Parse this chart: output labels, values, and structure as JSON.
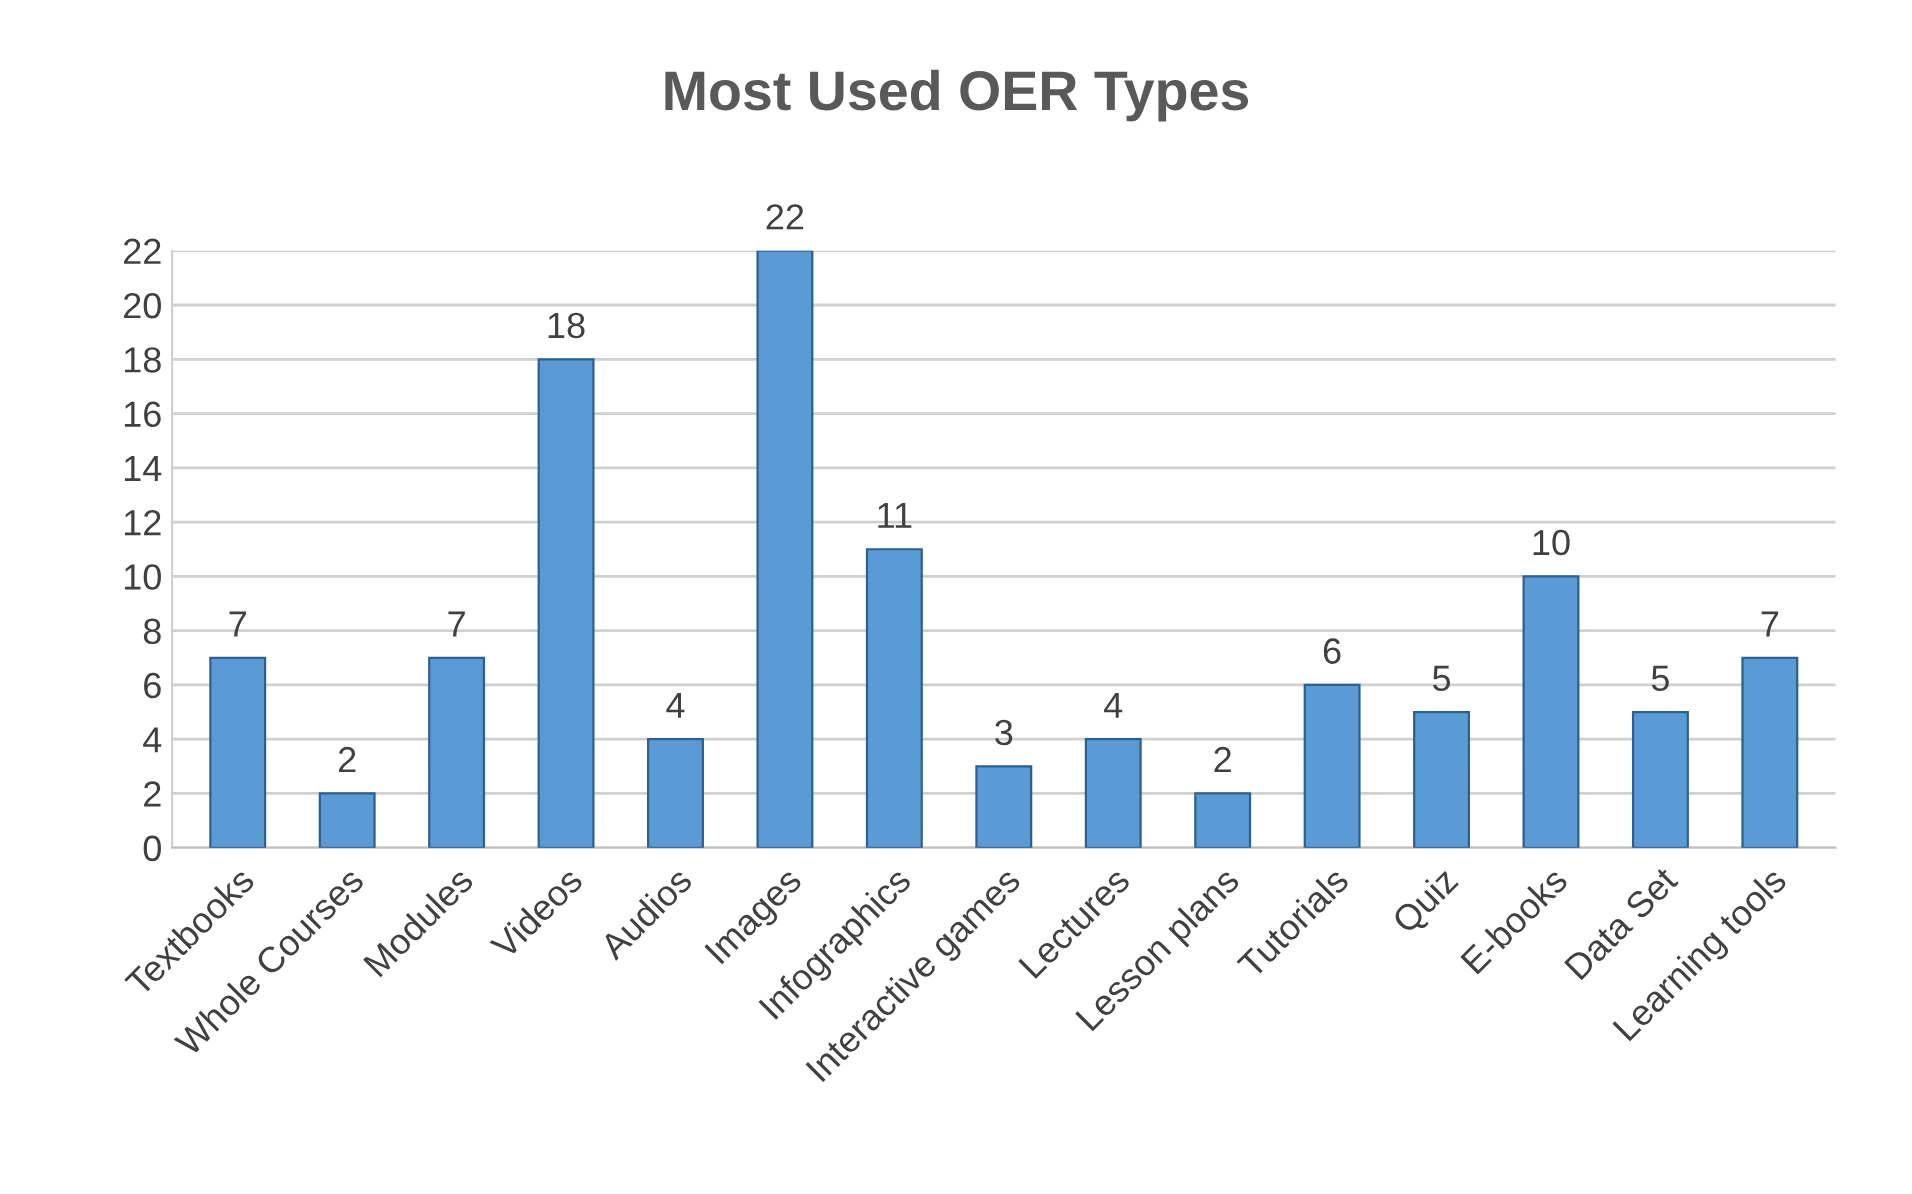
{
  "chart_data": {
    "type": "bar",
    "title": "Most Used OER Types",
    "categories": [
      "Textbooks",
      "Whole Courses",
      "Modules",
      "Videos",
      "Audios",
      "Images",
      "Infographics",
      "Interactive games",
      "Lectures",
      "Lesson plans",
      "Tutorials",
      "Quiz",
      "E-books",
      "Data Set",
      "Learning tools"
    ],
    "values": [
      7,
      2,
      7,
      18,
      4,
      22,
      11,
      3,
      4,
      2,
      6,
      5,
      10,
      5,
      7
    ],
    "color": "#5b9bd5",
    "ylim": [
      0,
      22
    ],
    "yticks": [
      0,
      2,
      4,
      6,
      8,
      10,
      12,
      14,
      16,
      18,
      20,
      22
    ],
    "grid": "y",
    "data_labels": true
  }
}
